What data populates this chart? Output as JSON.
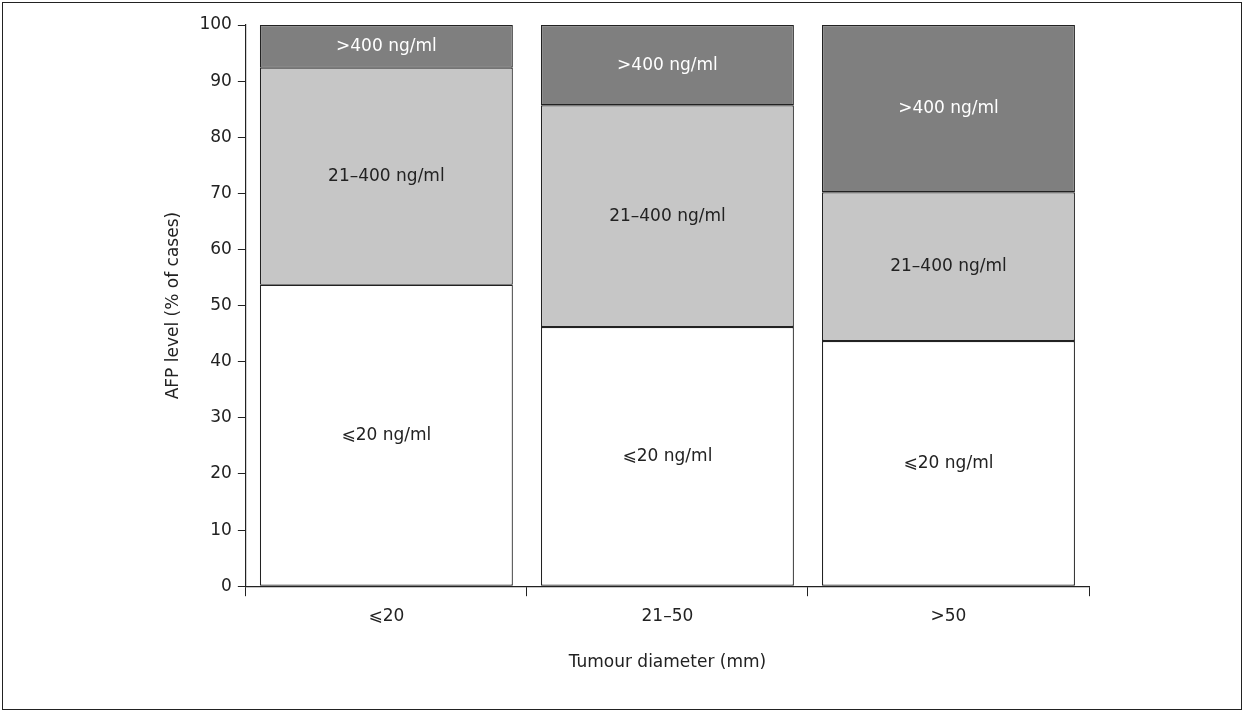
{
  "chart_data": {
    "type": "bar",
    "stacked": true,
    "xlabel": "Tumour diameter (mm)",
    "ylabel": "AFP level (% of cases)",
    "categories": [
      "⩽20",
      "21–50",
      ">50"
    ],
    "series": [
      {
        "name": "⩽20 ng/ml",
        "color": "#ffffff",
        "values": [
          53.7,
          46.2,
          43.7
        ]
      },
      {
        "name": "21–400 ng/ml",
        "color": "#c6c6c6",
        "values": [
          38.7,
          39.5,
          26.5
        ]
      },
      {
        "name": ">400 ng/ml",
        "color": "#7f7f7f",
        "values": [
          7.6,
          14.3,
          29.8
        ]
      }
    ],
    "ylim": [
      0,
      100
    ],
    "yticks": [
      0,
      10,
      20,
      30,
      40,
      50,
      60,
      70,
      80,
      90,
      100
    ],
    "grid": false,
    "legend": false
  }
}
